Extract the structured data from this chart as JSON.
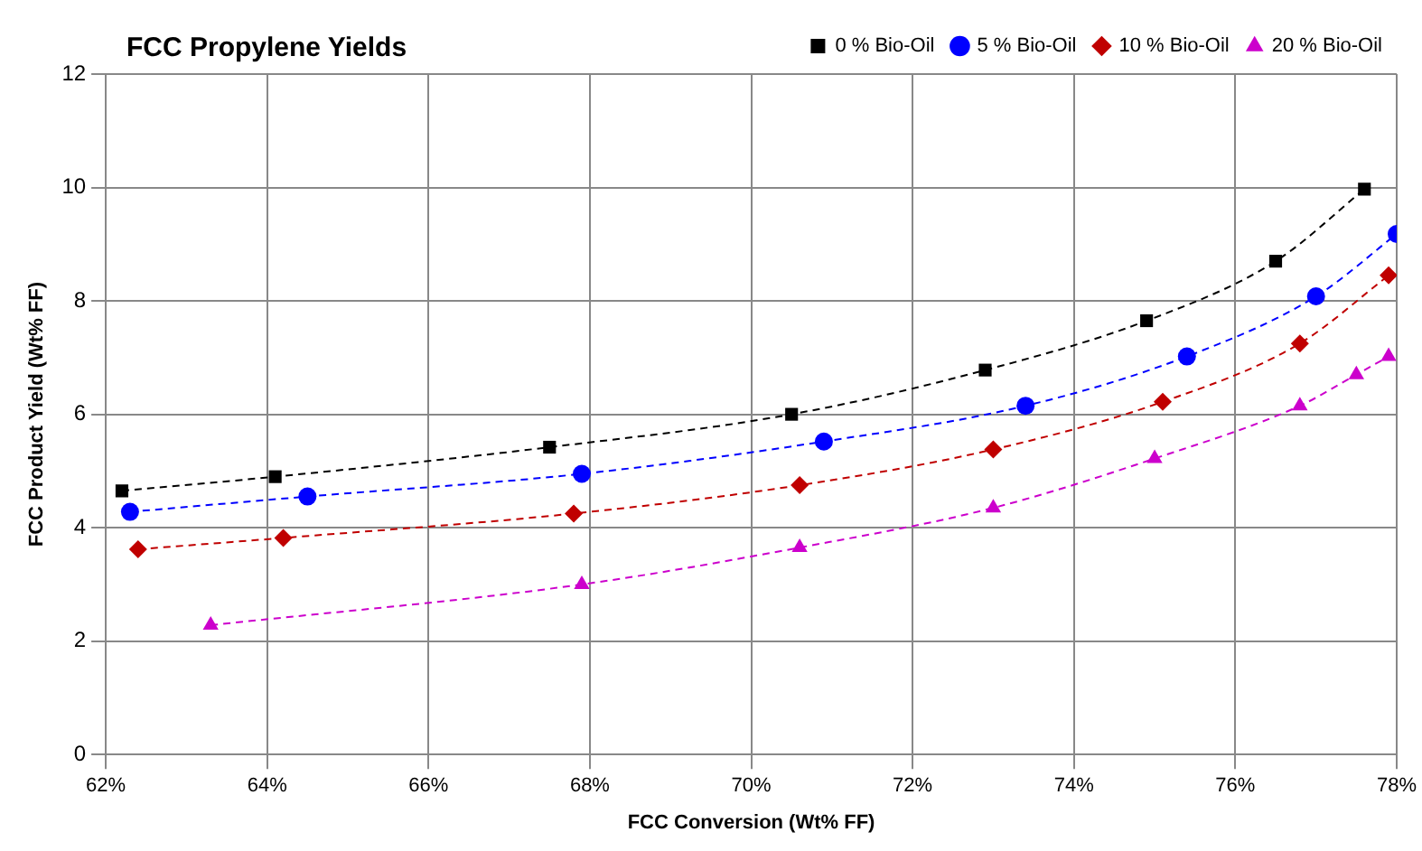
{
  "chart_data": {
    "type": "line",
    "title": "FCC Propylene Yields",
    "xlabel": "FCC Conversion (Wt% FF)",
    "ylabel": "FCC Product Yield (Wt% FF)",
    "xlim": [
      62,
      78
    ],
    "xticks": [
      {
        "value": 62,
        "label": "62%"
      },
      {
        "value": 64,
        "label": "64%"
      },
      {
        "value": 66,
        "label": "66%"
      },
      {
        "value": 68,
        "label": "68%"
      },
      {
        "value": 70,
        "label": "70%"
      },
      {
        "value": 72,
        "label": "72%"
      },
      {
        "value": 74,
        "label": "74%"
      },
      {
        "value": 76,
        "label": "76%"
      },
      {
        "value": 78,
        "label": "78%"
      }
    ],
    "ylim": [
      0,
      12
    ],
    "yticks": [
      0,
      2,
      4,
      6,
      8,
      10,
      12
    ],
    "grid": true,
    "legend": "top right",
    "line_style": "dashed",
    "series": [
      {
        "name": "0 % Bio-Oil",
        "color": "#000000",
        "marker": "square",
        "x": [
          62.2,
          64.1,
          67.5,
          70.5,
          72.9,
          74.9,
          76.5,
          77.6
        ],
        "values": [
          4.65,
          4.9,
          5.42,
          6.0,
          6.78,
          7.65,
          8.7,
          9.97
        ]
      },
      {
        "name": "5 % Bio-Oil",
        "color": "#0000ff",
        "marker": "circle",
        "x": [
          62.3,
          64.5,
          67.9,
          70.9,
          73.4,
          75.4,
          77.0,
          78.0
        ],
        "values": [
          4.28,
          4.55,
          4.95,
          5.52,
          6.15,
          7.02,
          8.08,
          9.18
        ]
      },
      {
        "name": "10 % Bio-Oil",
        "color": "#c00000",
        "marker": "diamond",
        "x": [
          62.4,
          64.2,
          67.8,
          70.6,
          73.0,
          75.1,
          76.8,
          77.9
        ],
        "values": [
          3.62,
          3.82,
          4.25,
          4.75,
          5.38,
          6.22,
          7.25,
          8.45
        ]
      },
      {
        "name": "20 % Bio-Oil",
        "color": "#cc00cc",
        "marker": "triangle",
        "x": [
          63.3,
          67.9,
          70.6,
          73.0,
          75.0,
          76.8,
          77.5,
          77.9
        ],
        "values": [
          2.28,
          3.0,
          3.65,
          4.35,
          5.22,
          6.15,
          6.7,
          7.02
        ]
      }
    ]
  }
}
